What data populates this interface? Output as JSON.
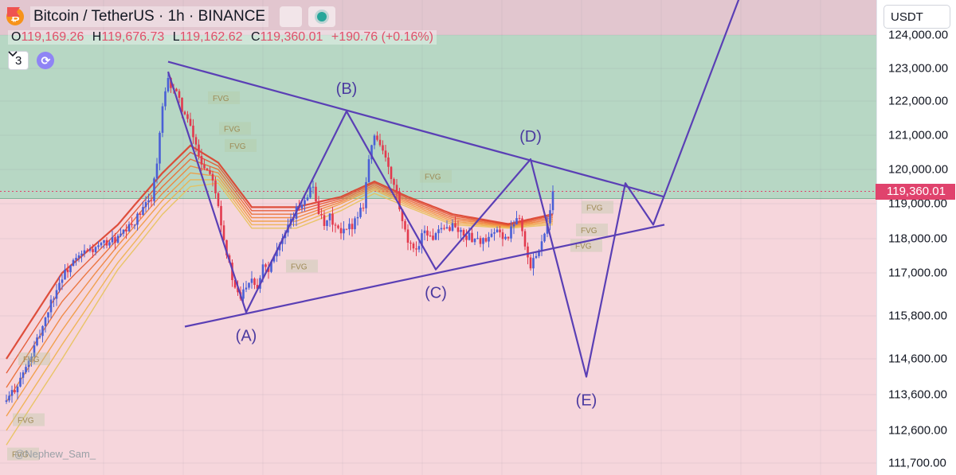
{
  "header": {
    "symbol_title": "Bitcoin / TetherUS · 1h · BINANCE",
    "coin_glyph": "₿",
    "ohlc": {
      "o_label": "O",
      "o": "119,169.26",
      "h_label": "H",
      "h": "119,676.73",
      "l_label": "L",
      "l": "119,162.62",
      "c_label": "C",
      "c": "119,360.01",
      "change": "+190.76 (+0.16%)"
    },
    "indicator_count": "3"
  },
  "watermark": "@Nephew_Sam_",
  "axis": {
    "currency": "USDT",
    "ticks": [
      {
        "value": 124000,
        "label": "124,000.00"
      },
      {
        "value": 123000,
        "label": "123,000.00"
      },
      {
        "value": 122000,
        "label": "122,000.00"
      },
      {
        "value": 121000,
        "label": "121,000.00"
      },
      {
        "value": 120000,
        "label": "120,000.00"
      },
      {
        "value": 119000,
        "label": "119,000.00"
      },
      {
        "value": 118000,
        "label": "118,000.00"
      },
      {
        "value": 117000,
        "label": "117,000.00"
      },
      {
        "value": 115800,
        "label": "115,800.00"
      },
      {
        "value": 114600,
        "label": "114,600.00"
      },
      {
        "value": 113600,
        "label": "113,600.00"
      },
      {
        "value": 112600,
        "label": "112,600.00"
      },
      {
        "value": 111700,
        "label": "111,700.00"
      }
    ],
    "current_price": {
      "value": 119360.01,
      "label": "119,360.01"
    }
  },
  "colors": {
    "upper_zone": "#b7d7c4",
    "lower_zone": "#f6d6dc",
    "top_band": "#e2c6cf",
    "pattern_line": "#5a3fb5",
    "pattern_label": "#4b3aa0",
    "candle_up": "#4a5fd6",
    "candle_down": "#e23a4e",
    "fvg_text": "#9e8b56"
  },
  "chart_data": {
    "type": "candlestick",
    "symbol": "Bitcoin / TetherUS",
    "interval": "1h",
    "exchange": "BINANCE",
    "y_axis_unit": "USDT",
    "ylim": [
      111700,
      124600
    ],
    "x_index_range": [
      0,
      118
    ],
    "last_close": 119360.01,
    "zones": [
      {
        "name": "supply",
        "from": 119150,
        "to": 124000
      },
      {
        "name": "demand",
        "from": 111700,
        "to": 119150
      }
    ],
    "close_path": [
      [
        0,
        113400
      ],
      [
        2,
        113900
      ],
      [
        4,
        114500
      ],
      [
        6,
        115300
      ],
      [
        8,
        116200
      ],
      [
        10,
        116900
      ],
      [
        12,
        117300
      ],
      [
        14,
        117600
      ],
      [
        16,
        117700
      ],
      [
        18,
        117900
      ],
      [
        20,
        118000
      ],
      [
        22,
        118300
      ],
      [
        24,
        118700
      ],
      [
        26,
        119200
      ],
      [
        27,
        120200
      ],
      [
        28,
        121800
      ],
      [
        29,
        122600
      ],
      [
        30,
        122400
      ],
      [
        31,
        122000
      ],
      [
        33,
        121200
      ],
      [
        35,
        120200
      ],
      [
        37,
        119800
      ],
      [
        38,
        119000
      ],
      [
        39,
        118000
      ],
      [
        40,
        117200
      ],
      [
        41,
        116500
      ],
      [
        42,
        116300
      ],
      [
        43,
        116700
      ],
      [
        44,
        116900
      ],
      [
        45,
        116600
      ],
      [
        46,
        117300
      ],
      [
        47,
        117100
      ],
      [
        48,
        117600
      ],
      [
        50,
        118100
      ],
      [
        52,
        118800
      ],
      [
        54,
        119300
      ],
      [
        55,
        119500
      ],
      [
        56,
        118800
      ],
      [
        57,
        118300
      ],
      [
        58,
        118600
      ],
      [
        60,
        118100
      ],
      [
        62,
        118400
      ],
      [
        64,
        119000
      ],
      [
        65,
        120300
      ],
      [
        66,
        121000
      ],
      [
        67,
        120800
      ],
      [
        68,
        120300
      ],
      [
        69,
        119700
      ],
      [
        70,
        119300
      ],
      [
        71,
        118400
      ],
      [
        72,
        117900
      ],
      [
        73,
        117600
      ],
      [
        74,
        117900
      ],
      [
        75,
        118300
      ],
      [
        76,
        118000
      ],
      [
        78,
        118200
      ],
      [
        80,
        118400
      ],
      [
        82,
        118100
      ],
      [
        84,
        118000
      ],
      [
        86,
        117900
      ],
      [
        88,
        118200
      ],
      [
        90,
        118000
      ],
      [
        91,
        118500
      ],
      [
        92,
        118700
      ],
      [
        93,
        117800
      ],
      [
        94,
        117100
      ],
      [
        95,
        117600
      ],
      [
        96,
        117900
      ],
      [
        97,
        118500
      ],
      [
        98,
        119360
      ]
    ],
    "ema_ribbon": [
      {
        "name": "1",
        "path": [
          [
            0,
            112200
          ],
          [
            10,
            114600
          ],
          [
            20,
            117100
          ],
          [
            28,
            118700
          ],
          [
            33,
            119500
          ],
          [
            38,
            119600
          ],
          [
            44,
            118300
          ],
          [
            52,
            118300
          ],
          [
            60,
            118800
          ],
          [
            66,
            119300
          ],
          [
            72,
            118900
          ],
          [
            80,
            118400
          ],
          [
            90,
            118300
          ],
          [
            98,
            118400
          ]
        ]
      },
      {
        "name": "2",
        "path": [
          [
            0,
            112600
          ],
          [
            10,
            115000
          ],
          [
            20,
            117300
          ],
          [
            28,
            118900
          ],
          [
            33,
            119700
          ],
          [
            38,
            119700
          ],
          [
            44,
            118400
          ],
          [
            52,
            118400
          ],
          [
            60,
            118900
          ],
          [
            66,
            119400
          ],
          [
            72,
            118950
          ],
          [
            80,
            118450
          ],
          [
            90,
            118320
          ],
          [
            98,
            118450
          ]
        ]
      },
      {
        "name": "3",
        "path": [
          [
            0,
            113000
          ],
          [
            10,
            115400
          ],
          [
            20,
            117600
          ],
          [
            28,
            119100
          ],
          [
            33,
            119900
          ],
          [
            38,
            119800
          ],
          [
            44,
            118500
          ],
          [
            52,
            118500
          ],
          [
            60,
            119000
          ],
          [
            66,
            119450
          ],
          [
            72,
            119000
          ],
          [
            80,
            118500
          ],
          [
            90,
            118340
          ],
          [
            98,
            118500
          ]
        ]
      },
      {
        "name": "4",
        "path": [
          [
            0,
            113400
          ],
          [
            10,
            115800
          ],
          [
            20,
            117800
          ],
          [
            28,
            119300
          ],
          [
            33,
            120100
          ],
          [
            38,
            119900
          ],
          [
            44,
            118600
          ],
          [
            52,
            118600
          ],
          [
            60,
            119050
          ],
          [
            66,
            119500
          ],
          [
            72,
            119050
          ],
          [
            80,
            118550
          ],
          [
            90,
            118360
          ],
          [
            98,
            118550
          ]
        ]
      },
      {
        "name": "5",
        "path": [
          [
            0,
            113800
          ],
          [
            10,
            116200
          ],
          [
            20,
            118000
          ],
          [
            28,
            119500
          ],
          [
            33,
            120300
          ],
          [
            38,
            120000
          ],
          [
            44,
            118700
          ],
          [
            52,
            118700
          ],
          [
            60,
            119100
          ],
          [
            66,
            119550
          ],
          [
            72,
            119100
          ],
          [
            80,
            118600
          ],
          [
            90,
            118380
          ],
          [
            98,
            118600
          ]
        ]
      },
      {
        "name": "6",
        "path": [
          [
            0,
            114200
          ],
          [
            10,
            116600
          ],
          [
            20,
            118200
          ],
          [
            28,
            119700
          ],
          [
            33,
            120500
          ],
          [
            38,
            120100
          ],
          [
            44,
            118800
          ],
          [
            52,
            118800
          ],
          [
            60,
            119150
          ],
          [
            66,
            119600
          ],
          [
            72,
            119150
          ],
          [
            80,
            118650
          ],
          [
            90,
            118400
          ],
          [
            98,
            118650
          ]
        ]
      },
      {
        "name": "7",
        "path": [
          [
            0,
            114600
          ],
          [
            10,
            117000
          ],
          [
            20,
            118400
          ],
          [
            28,
            119900
          ],
          [
            33,
            120700
          ],
          [
            38,
            120200
          ],
          [
            44,
            118900
          ],
          [
            52,
            118900
          ],
          [
            60,
            119200
          ],
          [
            66,
            119650
          ],
          [
            72,
            119200
          ],
          [
            80,
            118700
          ],
          [
            90,
            118420
          ],
          [
            98,
            118700
          ]
        ]
      }
    ],
    "pattern_points": [
      {
        "label": "",
        "x": 29,
        "y": 122900
      },
      {
        "label": "(A)",
        "x": 43,
        "y": 115900
      },
      {
        "label": "(B)",
        "x": 61,
        "y": 121700
      },
      {
        "label": "(C)",
        "x": 77,
        "y": 117100
      },
      {
        "label": "(D)",
        "x": 94,
        "y": 120300
      },
      {
        "label": "(E)",
        "x": 104,
        "y": 114100
      },
      {
        "label": "",
        "x": 111,
        "y": 119600
      },
      {
        "label": "",
        "x": 116,
        "y": 118400
      },
      {
        "label": "",
        "x": 133,
        "y": 125800
      }
    ],
    "trendlines": [
      {
        "name": "upper",
        "from": [
          29,
          123200
        ],
        "to": [
          118,
          119200
        ]
      },
      {
        "name": "lower",
        "from": [
          32,
          115500
        ],
        "to": [
          118,
          118400
        ]
      }
    ],
    "fvg_labels": [
      {
        "text": "FVG",
        "x": 37,
        "y": 122100
      },
      {
        "text": "FVG",
        "x": 39,
        "y": 121200
      },
      {
        "text": "FVG",
        "x": 40,
        "y": 120700
      },
      {
        "text": "FVG",
        "x": 75,
        "y": 119800
      },
      {
        "text": "FVG",
        "x": 51,
        "y": 117200
      },
      {
        "text": "FVG",
        "x": 104,
        "y": 118900
      },
      {
        "text": "FVG",
        "x": 103,
        "y": 118250
      },
      {
        "text": "FVG",
        "x": 102,
        "y": 117800
      },
      {
        "text": "FVG",
        "x": 3,
        "y": 114600
      },
      {
        "text": "FVG",
        "x": 2,
        "y": 112900
      },
      {
        "text": "FVG",
        "x": 1,
        "y": 111950
      }
    ]
  }
}
